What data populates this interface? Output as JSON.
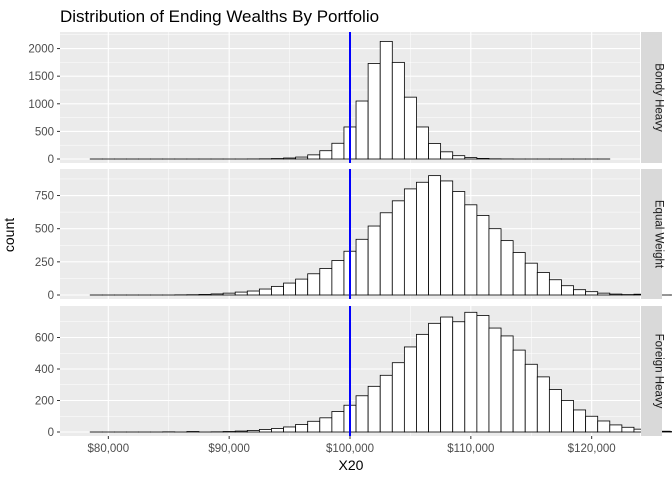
{
  "chart_data": {
    "type": "bar",
    "title": "Distribution of Ending Wealths By Portfolio",
    "xlabel": "X20",
    "ylabel": "count",
    "bin_width": 1000,
    "xlim": [
      76000,
      124000
    ],
    "x_ticks": [
      {
        "value": 80000,
        "label": "$80,000"
      },
      {
        "value": 90000,
        "label": "$90,000"
      },
      {
        "value": 100000,
        "label": "$100,000"
      },
      {
        "value": 110000,
        "label": "$110,000"
      },
      {
        "value": 120000,
        "label": "$120,000"
      }
    ],
    "reference_line": {
      "x": 100000,
      "color": "#0000ff"
    },
    "grid": true,
    "colors": {
      "panel_bg": "#ebebeb",
      "strip_bg": "#d9d9d9",
      "bar_fill": "#ffffff",
      "bar_stroke": "#000000",
      "grid": "#ffffff"
    },
    "panels": [
      {
        "name": "Bondy Heavy",
        "ylim": [
          0,
          2300
        ],
        "y_ticks": [
          0,
          500,
          1000,
          1500,
          2000
        ],
        "x_start": 78500,
        "counts": [
          0,
          0,
          0,
          0,
          0,
          0,
          0,
          0,
          0,
          0,
          0,
          0,
          0,
          1,
          3,
          8,
          18,
          35,
          75,
          150,
          285,
          580,
          1050,
          1730,
          2130,
          1750,
          1120,
          580,
          280,
          130,
          60,
          25,
          10,
          3,
          1,
          0,
          0,
          0,
          0,
          0,
          0,
          0,
          0
        ]
      },
      {
        "name": "Equal Weight",
        "ylim": [
          0,
          950
        ],
        "y_ticks": [
          0,
          250,
          500,
          750
        ],
        "x_start": 78500,
        "counts": [
          0,
          0,
          0,
          0,
          0,
          0,
          0,
          1,
          2,
          4,
          8,
          14,
          22,
          30,
          45,
          65,
          90,
          120,
          160,
          200,
          260,
          330,
          420,
          520,
          620,
          710,
          800,
          850,
          900,
          860,
          780,
          680,
          600,
          500,
          410,
          320,
          240,
          170,
          115,
          70,
          40,
          25,
          14,
          7,
          3,
          6,
          0,
          0,
          0,
          0,
          0,
          0,
          0,
          0
        ]
      },
      {
        "name": "Foreign Heavy",
        "ylim": [
          0,
          800
        ],
        "y_ticks": [
          0,
          200,
          400,
          600
        ],
        "x_start": 78500,
        "counts": [
          0,
          0,
          0,
          0,
          0,
          0,
          1,
          0,
          3,
          0,
          1,
          3,
          6,
          10,
          16,
          22,
          32,
          48,
          68,
          90,
          130,
          170,
          230,
          290,
          360,
          440,
          540,
          620,
          690,
          730,
          700,
          760,
          740,
          660,
          610,
          520,
          430,
          350,
          270,
          200,
          140,
          100,
          70,
          45,
          30,
          18,
          10,
          5,
          3,
          2,
          1,
          0,
          0
        ]
      }
    ]
  }
}
